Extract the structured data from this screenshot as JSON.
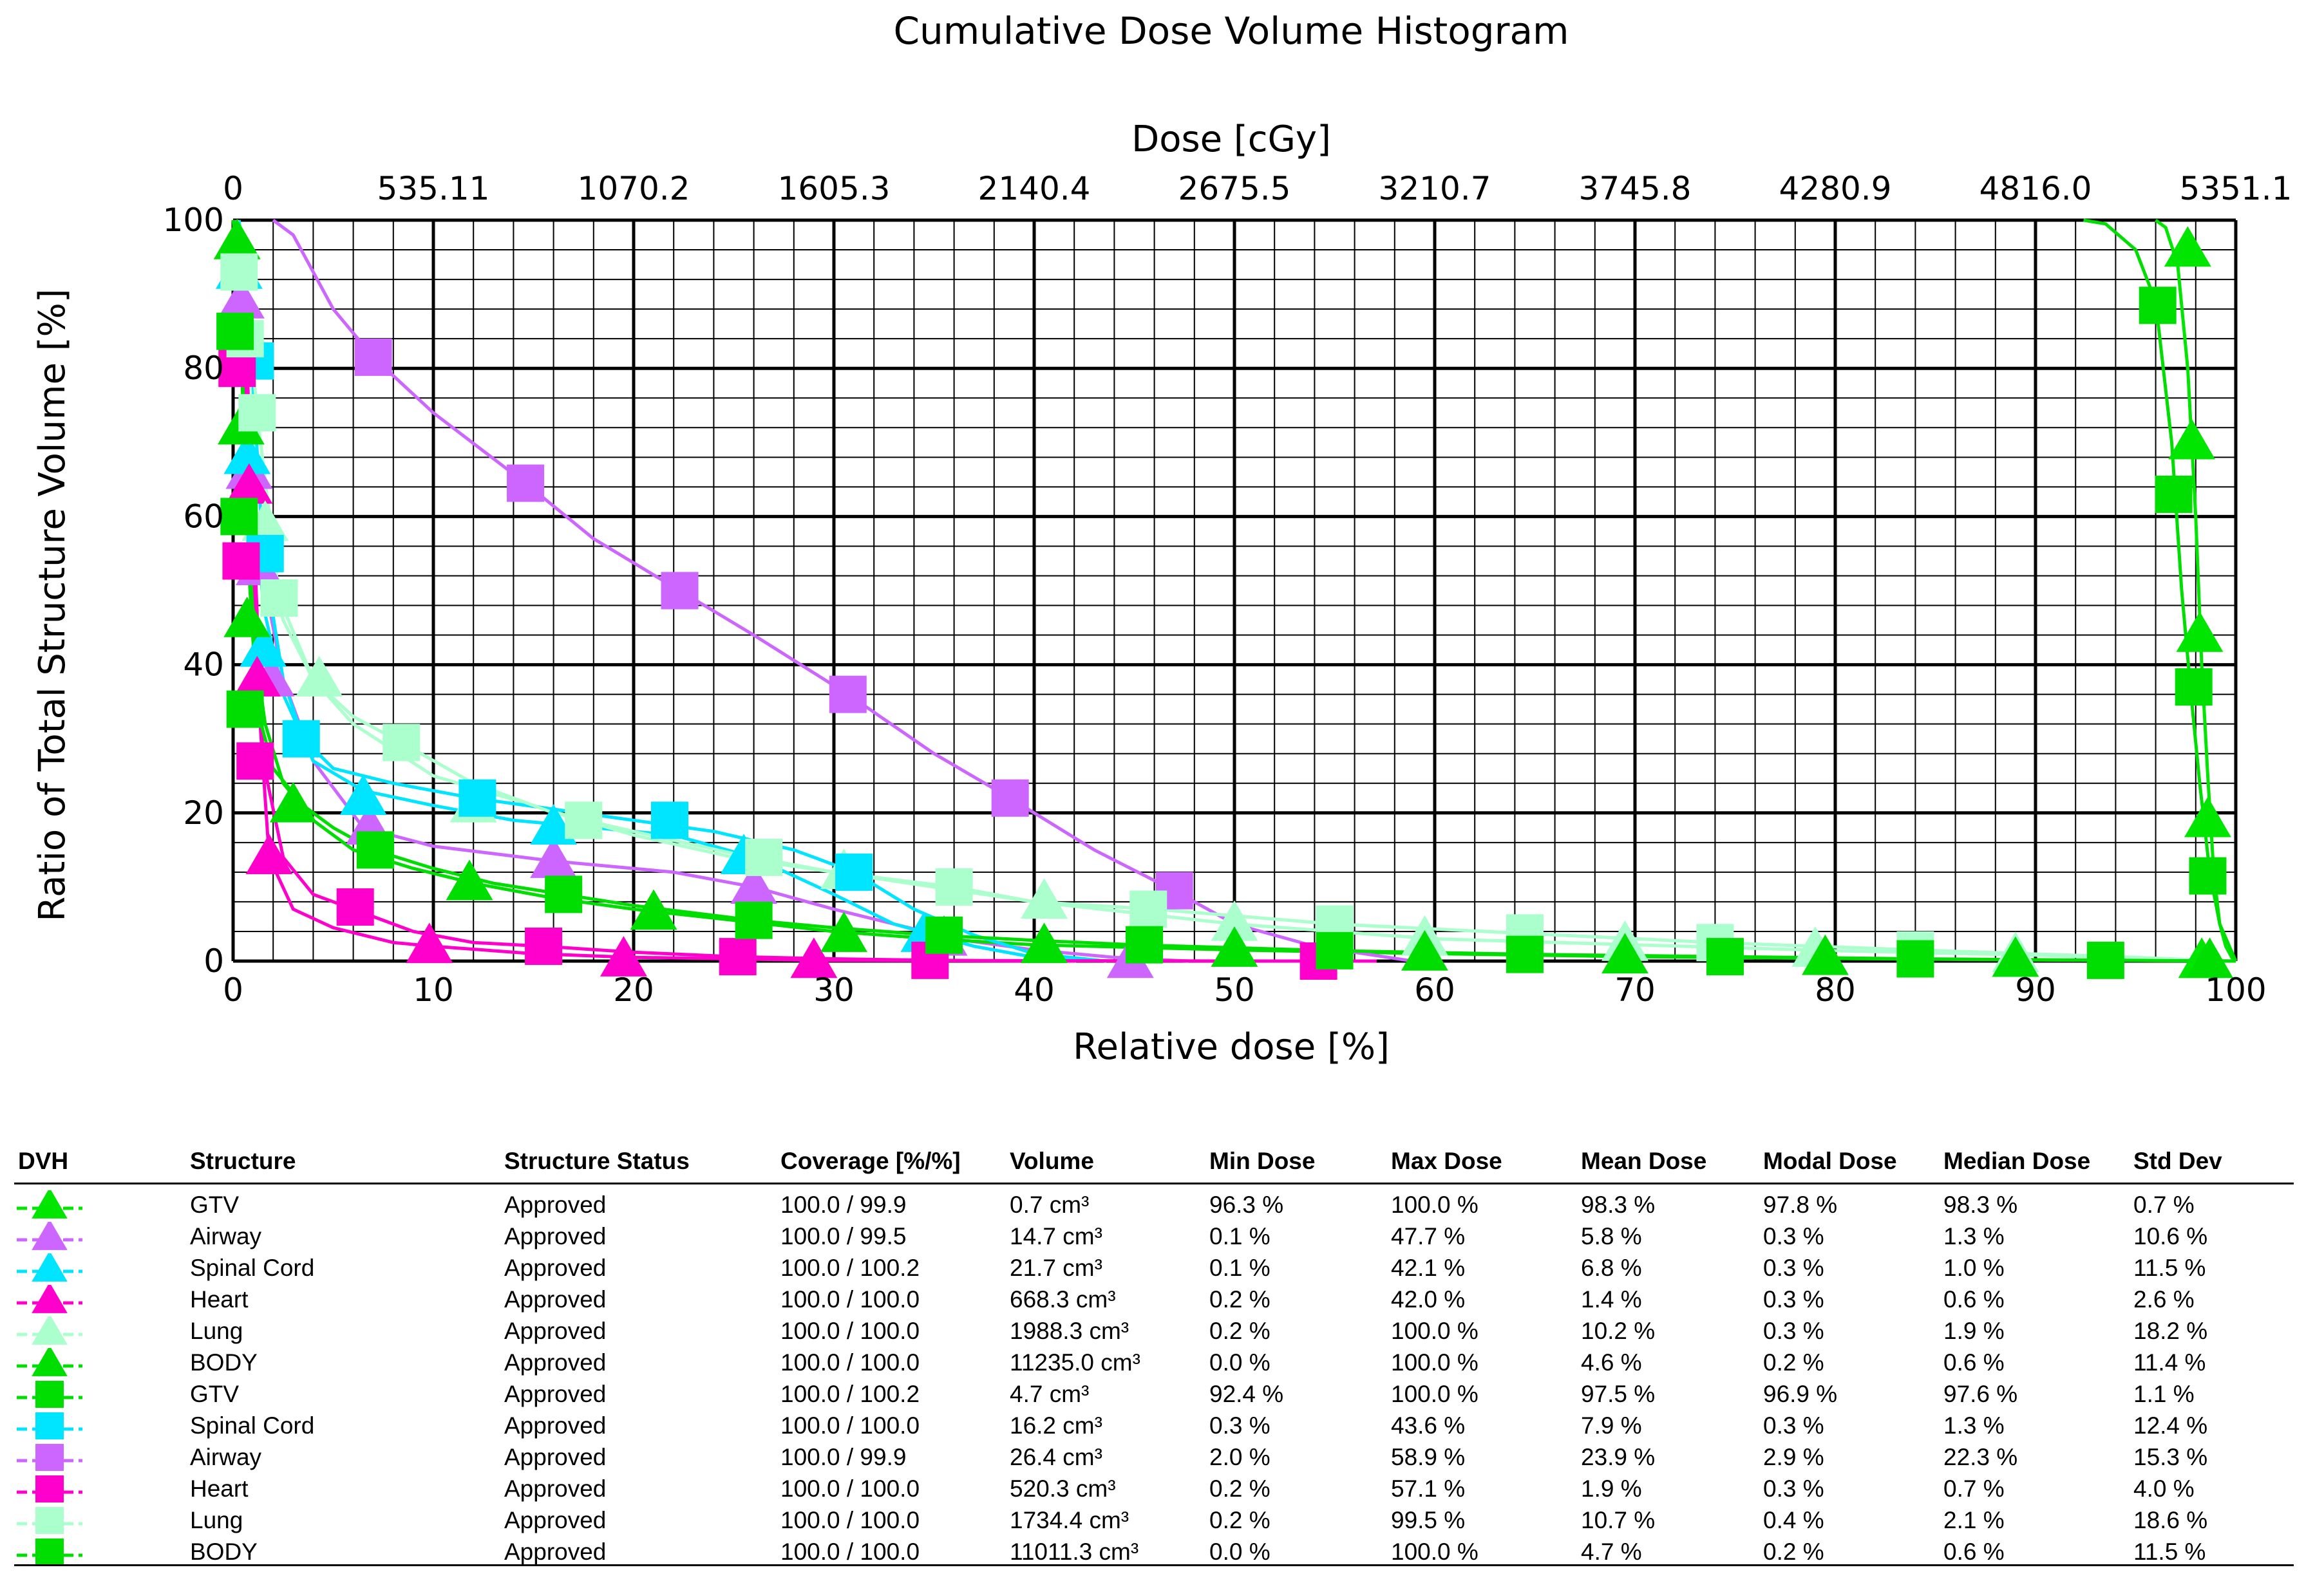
{
  "chart_data": {
    "type": "line",
    "title": "Cumulative Dose Volume Histogram",
    "xlabel": "Relative dose [%]",
    "ylabel": "Ratio of Total Structure Volume [%]",
    "x2label": "Dose [cGy]",
    "xlim": [
      0,
      100
    ],
    "ylim": [
      0,
      100
    ],
    "grid": true,
    "x_ticks": [
      "0",
      "10",
      "20",
      "30",
      "40",
      "50",
      "60",
      "70",
      "80",
      "90",
      "100"
    ],
    "y_ticks": [
      "0",
      "20",
      "40",
      "60",
      "80",
      "100"
    ],
    "x2_ticks": [
      "0",
      "535.11",
      "1070.2",
      "1605.3",
      "2140.4",
      "2675.5",
      "3210.7",
      "3745.8",
      "4280.9",
      "4816.0",
      "5351.1"
    ],
    "series": [
      {
        "name": "GTV",
        "marker": "triangle",
        "color": "#00e600",
        "x": [
          96,
          96.5,
          97.1,
          97.6,
          98.0,
          98.3,
          98.6,
          98.9,
          99.2,
          99.5,
          99.9
        ],
        "y": [
          100,
          99,
          94,
          80,
          60,
          40,
          25,
          12,
          5,
          2,
          0
        ],
        "marker_x": [
          97.6,
          97.8,
          98.2,
          98.6,
          98.3
        ],
        "marker_y": [
          96,
          70,
          44,
          19,
          0
        ]
      },
      {
        "name": "Airway",
        "marker": "triangle",
        "color": "#cc66ff",
        "x": [
          0.1,
          0.3,
          0.6,
          1.0,
          1.5,
          2.5,
          4,
          6.5,
          10,
          16,
          22,
          26,
          30,
          36,
          40,
          44,
          47.7
        ],
        "y": [
          100,
          92,
          80,
          64,
          52,
          38,
          27,
          18,
          15.5,
          13.5,
          12,
          10,
          7,
          3,
          1.5,
          0.5,
          0
        ],
        "marker_x": [
          0.4,
          0.8,
          1.3,
          1.9,
          6.8,
          16,
          26,
          35.5,
          44.8
        ],
        "marker_y": [
          89,
          66,
          53,
          38,
          18,
          13.5,
          10,
          3,
          0
        ]
      },
      {
        "name": "Spinal Cord",
        "marker": "triangle",
        "color": "#00e5ff",
        "x": [
          0.1,
          0.3,
          0.6,
          1,
          1.5,
          2.5,
          4,
          6.5,
          10,
          14,
          18,
          22,
          26,
          30,
          33,
          35,
          37,
          40,
          42.1
        ],
        "y": [
          100,
          94,
          80,
          66,
          48,
          36,
          27,
          23,
          21,
          19,
          18,
          17,
          14,
          9,
          5,
          3.5,
          2,
          0.5,
          0
        ],
        "marker_x": [
          0.3,
          0.7,
          1.5,
          6.5,
          16,
          25.5,
          34.5
        ],
        "marker_y": [
          93,
          68,
          42,
          22,
          18,
          14,
          3.5
        ]
      },
      {
        "name": "Heart",
        "marker": "triangle",
        "color": "#ff00cc",
        "x": [
          0.2,
          0.5,
          0.8,
          1.2,
          1.8,
          3,
          5,
          8,
          10,
          15,
          20,
          25,
          29,
          35,
          42
        ],
        "y": [
          100,
          85,
          64,
          38,
          14,
          7,
          4.5,
          2.5,
          2,
          1,
          0.5,
          0.3,
          0.1,
          0.05,
          0
        ],
        "marker_x": [
          0.5,
          0.8,
          1.2,
          1.8,
          9.8,
          19.5,
          29
        ],
        "marker_y": [
          84,
          64,
          38,
          14,
          2,
          0.2,
          0
        ]
      },
      {
        "name": "Lung",
        "marker": "triangle",
        "color": "#aaffcc",
        "x": [
          0.2,
          0.6,
          1,
          1.5,
          2.5,
          4,
          6,
          10,
          15,
          20,
          25,
          30,
          35,
          40,
          50,
          60,
          70,
          80,
          90,
          100
        ],
        "y": [
          100,
          90,
          74,
          57,
          46,
          38,
          32,
          25,
          21,
          17,
          14,
          12,
          10,
          8,
          5,
          3,
          2.2,
          1.4,
          0.8,
          0
        ],
        "marker_x": [
          0.8,
          1.6,
          4.3,
          12,
          30.5,
          40.5,
          50,
          59.5,
          69.5,
          79,
          89
        ],
        "marker_y": [
          84,
          59,
          38,
          21,
          12,
          8,
          5,
          3,
          2.3,
          1.5,
          0.8
        ]
      },
      {
        "name": "BODY",
        "marker": "triangle",
        "color": "#00dd00",
        "x": [
          0.0,
          0.2,
          0.4,
          0.7,
          1.1,
          1.6,
          2.5,
          4,
          6,
          9,
          12,
          16,
          20,
          25,
          30,
          35,
          40,
          50,
          60,
          70,
          80,
          90,
          99,
          100
        ],
        "y": [
          100,
          98,
          85,
          60,
          42,
          32,
          24,
          19,
          15,
          12.5,
          10.5,
          8.5,
          7,
          5.5,
          4,
          3,
          2.2,
          1.5,
          1,
          0.6,
          0.35,
          0.15,
          0.02,
          0
        ],
        "marker_x": [
          0.2,
          0.4,
          0.7,
          3,
          11.8,
          21,
          30.5,
          40.5,
          50,
          59.5,
          69.5,
          79.5,
          89,
          98.7
        ],
        "marker_y": [
          97,
          72,
          46,
          21,
          10.5,
          6.5,
          3.5,
          2,
          1.5,
          1,
          0.6,
          0.4,
          0.15,
          0
        ]
      },
      {
        "name": "GTV",
        "marker": "square",
        "color": "#00dd00",
        "x": [
          92.4,
          93.5,
          95,
          96,
          96.8,
          97.3,
          97.8,
          98.2,
          98.7,
          99.2,
          100
        ],
        "y": [
          100,
          99.5,
          96,
          89,
          70,
          50,
          35,
          24,
          12,
          5,
          0
        ],
        "marker_x": [
          96.1,
          96.9,
          97.9,
          98.6
        ],
        "marker_y": [
          88.5,
          63,
          37,
          11.5
        ]
      },
      {
        "name": "Spinal Cord",
        "marker": "square",
        "color": "#00e5ff",
        "x": [
          0.3,
          0.6,
          1,
          1.5,
          2.5,
          3.5,
          5,
          8,
          12,
          16,
          20,
          24,
          28,
          31,
          34,
          37,
          40,
          43.6
        ],
        "y": [
          100,
          92,
          78,
          55,
          38,
          30,
          26,
          24,
          22,
          20.5,
          19,
          17.5,
          15,
          12,
          7,
          3.5,
          1,
          0
        ],
        "marker_x": [
          1.1,
          1.6,
          3.4,
          12.2,
          21.8,
          31
        ],
        "marker_y": [
          81,
          55,
          30,
          22,
          19,
          12
        ]
      },
      {
        "name": "Airway",
        "marker": "square",
        "color": "#cc66ff",
        "x": [
          2,
          3,
          5,
          7,
          10,
          14.6,
          18,
          22.3,
          26,
          30.7,
          35,
          38.8,
          43,
          47,
          50,
          54,
          58.9
        ],
        "y": [
          100,
          98,
          88,
          81.5,
          74,
          64.5,
          57,
          50,
          44,
          36,
          28,
          22,
          15,
          9.5,
          5,
          2,
          0
        ],
        "marker_x": [
          7,
          14.6,
          22.3,
          30.7,
          38.8,
          47
        ],
        "marker_y": [
          81.5,
          64.5,
          50,
          36,
          22,
          9.5
        ]
      },
      {
        "name": "Heart",
        "marker": "square",
        "color": "#ff00cc",
        "x": [
          0.2,
          0.4,
          0.7,
          1.0,
          1.5,
          2.5,
          4,
          6,
          9,
          12,
          15.5,
          20,
          25,
          30,
          35,
          40,
          50,
          57.1
        ],
        "y": [
          100,
          95,
          80,
          60,
          27,
          14,
          9,
          7,
          4,
          2.5,
          2,
          1.2,
          0.6,
          0.3,
          0.1,
          0.05,
          0.01,
          0
        ],
        "marker_x": [
          0.2,
          0.4,
          1.1,
          6.1,
          15.5,
          25.2,
          34.8,
          54.2
        ],
        "marker_y": [
          80,
          54,
          27,
          7.3,
          2,
          0.6,
          0.1,
          0
        ]
      },
      {
        "name": "Lung",
        "marker": "square",
        "color": "#aaffcc",
        "x": [
          0.2,
          0.5,
          0.8,
          1.2,
          2.3,
          4,
          6,
          8.4,
          12,
          16,
          20,
          25,
          30,
          36,
          40,
          46,
          55,
          64,
          74,
          84,
          94,
          99.5
        ],
        "y": [
          100,
          96,
          86,
          74,
          49,
          38,
          33,
          29.5,
          24,
          20,
          17.5,
          14.5,
          12,
          10,
          8,
          7,
          5,
          3.8,
          2.5,
          1.5,
          0.6,
          0
        ],
        "marker_x": [
          0.3,
          0.6,
          1.2,
          2.3,
          8.4,
          17.5,
          26.5,
          36,
          45.7,
          55,
          64.5,
          74,
          84
        ],
        "marker_y": [
          93,
          84,
          74,
          49,
          29.5,
          19,
          14,
          10,
          7,
          5,
          3.8,
          2.5,
          1.5
        ]
      },
      {
        "name": "BODY",
        "marker": "square",
        "color": "#00dd00",
        "x": [
          0,
          0.2,
          0.4,
          0.8,
          1.2,
          2,
          3.5,
          5,
          7,
          10,
          13,
          16.5,
          20,
          26,
          30,
          35,
          40,
          45,
          50,
          55,
          65,
          74.5,
          84,
          94,
          100
        ],
        "y": [
          100,
          96,
          82,
          52,
          34,
          26,
          21,
          18,
          15,
          12.5,
          10.5,
          9,
          7.5,
          5.5,
          4.5,
          3.5,
          2.8,
          2.2,
          1.8,
          1.4,
          0.9,
          0.6,
          0.3,
          0.1,
          0
        ],
        "marker_x": [
          0.1,
          0.3,
          0.6,
          7.1,
          16.5,
          26,
          35.5,
          45.5,
          55,
          64.5,
          74.5,
          84,
          93.5
        ],
        "marker_y": [
          85,
          60,
          34,
          15,
          9,
          5.5,
          3.5,
          2.2,
          1.4,
          0.9,
          0.6,
          0.3,
          0.1
        ]
      }
    ]
  },
  "table": {
    "headers": {
      "dvh": "DVH",
      "structure": "Structure",
      "status": "Structure Status",
      "coverage": "Coverage [%/%]",
      "volume": "Volume",
      "min": "Min Dose",
      "max": "Max Dose",
      "mean": "Mean Dose",
      "modal": "Modal Dose",
      "median": "Median Dose",
      "std": "Std Dev"
    },
    "rows": [
      {
        "structure": "GTV",
        "status": "Approved",
        "coverage": "100.0 / 99.9",
        "volume": "0.7 cm³",
        "min": "96.3 %",
        "max": "100.0 %",
        "mean": "98.3 %",
        "modal": "97.8 %",
        "median": "98.3 %",
        "std": "0.7 %",
        "color": "#00e600",
        "marker": "triangle"
      },
      {
        "structure": "Airway",
        "status": "Approved",
        "coverage": "100.0 / 99.5",
        "volume": "14.7 cm³",
        "min": "0.1 %",
        "max": "47.7 %",
        "mean": "5.8 %",
        "modal": "0.3 %",
        "median": "1.3 %",
        "std": "10.6 %",
        "color": "#cc66ff",
        "marker": "triangle"
      },
      {
        "structure": "Spinal Cord",
        "status": "Approved",
        "coverage": "100.0 / 100.2",
        "volume": "21.7 cm³",
        "min": "0.1 %",
        "max": "42.1 %",
        "mean": "6.8 %",
        "modal": "0.3 %",
        "median": "1.0 %",
        "std": "11.5 %",
        "color": "#00e5ff",
        "marker": "triangle"
      },
      {
        "structure": "Heart",
        "status": "Approved",
        "coverage": "100.0 / 100.0",
        "volume": "668.3 cm³",
        "min": "0.2 %",
        "max": "42.0 %",
        "mean": "1.4 %",
        "modal": "0.3 %",
        "median": "0.6 %",
        "std": "2.6 %",
        "color": "#ff00cc",
        "marker": "triangle"
      },
      {
        "structure": "Lung",
        "status": "Approved",
        "coverage": "100.0 / 100.0",
        "volume": "1988.3 cm³",
        "min": "0.2 %",
        "max": "100.0 %",
        "mean": "10.2 %",
        "modal": "0.3 %",
        "median": "1.9 %",
        "std": "18.2 %",
        "color": "#aaffcc",
        "marker": "triangle"
      },
      {
        "structure": "BODY",
        "status": "Approved",
        "coverage": "100.0 / 100.0",
        "volume": "11235.0 cm³",
        "min": "0.0 %",
        "max": "100.0 %",
        "mean": "4.6 %",
        "modal": "0.2 %",
        "median": "0.6 %",
        "std": "11.4 %",
        "color": "#00dd00",
        "marker": "triangle"
      },
      {
        "structure": "GTV",
        "status": "Approved",
        "coverage": "100.0 / 100.2",
        "volume": "4.7 cm³",
        "min": "92.4 %",
        "max": "100.0 %",
        "mean": "97.5 %",
        "modal": "96.9 %",
        "median": "97.6 %",
        "std": "1.1 %",
        "color": "#00dd00",
        "marker": "square"
      },
      {
        "structure": "Spinal Cord",
        "status": "Approved",
        "coverage": "100.0 / 100.0",
        "volume": "16.2 cm³",
        "min": "0.3 %",
        "max": "43.6 %",
        "mean": "7.9 %",
        "modal": "0.3 %",
        "median": "1.3 %",
        "std": "12.4 %",
        "color": "#00e5ff",
        "marker": "square"
      },
      {
        "structure": "Airway",
        "status": "Approved",
        "coverage": "100.0 / 99.9",
        "volume": "26.4 cm³",
        "min": "2.0 %",
        "max": "58.9 %",
        "mean": "23.9 %",
        "modal": "2.9 %",
        "median": "22.3 %",
        "std": "15.3 %",
        "color": "#cc66ff",
        "marker": "square"
      },
      {
        "structure": "Heart",
        "status": "Approved",
        "coverage": "100.0 / 100.0",
        "volume": "520.3 cm³",
        "min": "0.2 %",
        "max": "57.1 %",
        "mean": "1.9 %",
        "modal": "0.3 %",
        "median": "0.7 %",
        "std": "4.0 %",
        "color": "#ff00cc",
        "marker": "square"
      },
      {
        "structure": "Lung",
        "status": "Approved",
        "coverage": "100.0 / 100.0",
        "volume": "1734.4 cm³",
        "min": "0.2 %",
        "max": "99.5 %",
        "mean": "10.7 %",
        "modal": "0.4 %",
        "median": "2.1 %",
        "std": "18.6 %",
        "color": "#aaffcc",
        "marker": "square"
      },
      {
        "structure": "BODY",
        "status": "Approved",
        "coverage": "100.0 / 100.0",
        "volume": "11011.3 cm³",
        "min": "0.0 %",
        "max": "100.0 %",
        "mean": "4.7 %",
        "modal": "0.2 %",
        "median": "0.6 %",
        "std": "11.5 %",
        "color": "#00dd00",
        "marker": "square"
      }
    ]
  }
}
